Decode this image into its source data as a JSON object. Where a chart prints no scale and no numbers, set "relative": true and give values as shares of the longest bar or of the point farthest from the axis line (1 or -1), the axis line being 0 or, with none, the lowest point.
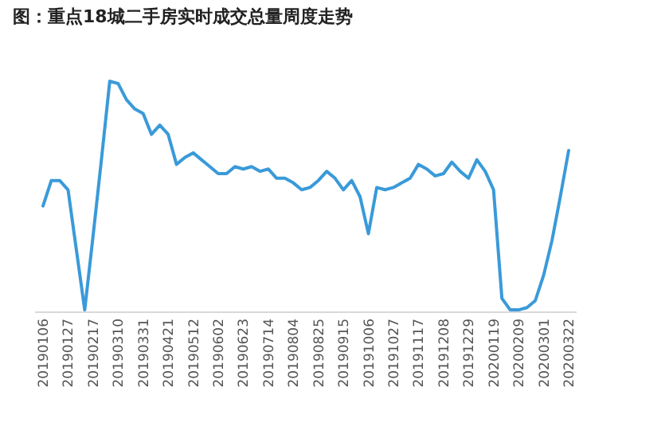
{
  "chart_data": {
    "type": "line",
    "title": "图：重点18城二手房实时成交总量周度走势",
    "relative": true,
    "marker": "none",
    "line_style": "solid",
    "categories": [
      "20190106",
      null,
      null,
      "20190127",
      null,
      null,
      "20190217",
      null,
      null,
      "20190310",
      null,
      null,
      "20190331",
      null,
      null,
      "20190421",
      null,
      null,
      "20190512",
      null,
      null,
      "20190602",
      null,
      null,
      "20190623",
      null,
      null,
      "20190714",
      null,
      null,
      "20190804",
      null,
      null,
      "20190825",
      null,
      null,
      "20190915",
      null,
      null,
      "20191006",
      null,
      null,
      "20191027",
      null,
      null,
      "20191117",
      null,
      null,
      "20191208",
      null,
      null,
      "20191229",
      null,
      null,
      "20200119",
      null,
      null,
      "20200209",
      null,
      null,
      "20200301",
      null,
      null,
      "20200322"
    ],
    "series": [
      {
        "color": "#3a9ad9",
        "values": [
          0.46,
          0.57,
          0.57,
          0.53,
          0.27,
          0.01,
          0.33,
          0.66,
          1.0,
          0.99,
          0.92,
          0.88,
          0.86,
          0.77,
          0.81,
          0.77,
          0.64,
          0.67,
          0.69,
          0.66,
          0.63,
          0.6,
          0.6,
          0.63,
          0.62,
          0.63,
          0.61,
          0.62,
          0.58,
          0.58,
          0.56,
          0.53,
          0.54,
          0.57,
          0.61,
          0.58,
          0.53,
          0.57,
          0.5,
          0.34,
          0.54,
          0.53,
          0.54,
          0.56,
          0.58,
          0.64,
          0.62,
          0.59,
          0.6,
          0.65,
          0.61,
          0.58,
          0.66,
          0.61,
          0.53,
          0.06,
          0.01,
          0.01,
          0.02,
          0.05,
          0.16,
          0.31,
          0.5,
          0.7
        ]
      }
    ]
  }
}
